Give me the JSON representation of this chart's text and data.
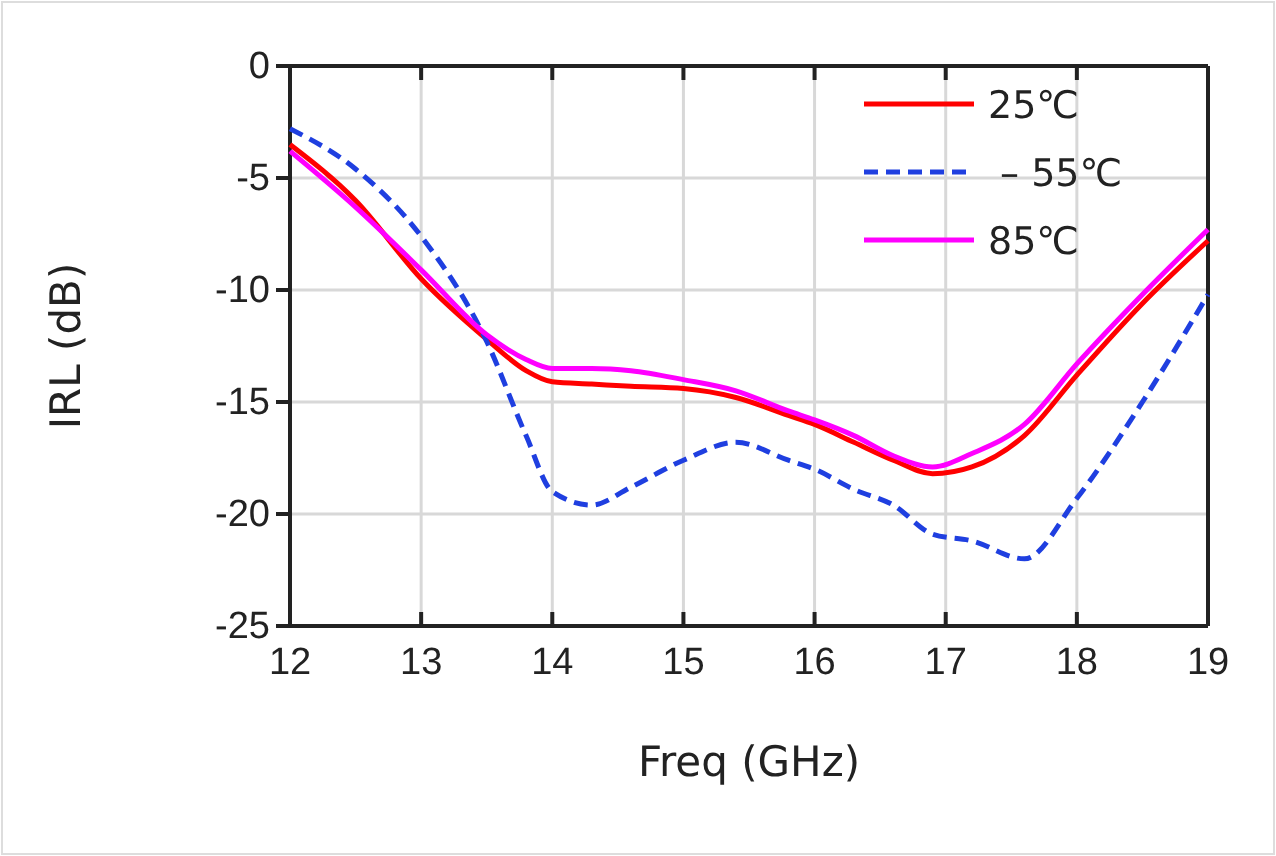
{
  "chart_data": {
    "type": "line",
    "xlabel": "Freq (GHz)",
    "ylabel": "IRL (dB)",
    "xlim": [
      12,
      19
    ],
    "xticks": [
      12,
      13,
      14,
      15,
      16,
      17,
      18,
      19
    ],
    "ylim": [
      -25,
      0
    ],
    "yticks": [
      -25,
      -20,
      -15,
      -10,
      -5,
      0
    ],
    "grid": true,
    "legend": "top right",
    "x": [
      12,
      12.5,
      13,
      13.5,
      13.8,
      14,
      14.3,
      14.6,
      15,
      15.4,
      15.8,
      16,
      16.3,
      16.6,
      16.9,
      17.2,
      17.6,
      18,
      18.5,
      19
    ],
    "series": [
      {
        "name": "25℃",
        "color": "#ff0000",
        "line_style": "solid",
        "values": [
          -3.5,
          -6,
          -9.5,
          -12.2,
          -13.6,
          -14.1,
          -14.2,
          -14.3,
          -14.4,
          -14.8,
          -15.6,
          -16,
          -16.8,
          -17.6,
          -18.2,
          -17.9,
          -16.5,
          -13.8,
          -10.6,
          -7.8
        ]
      },
      {
        "name": " – 55℃",
        "color": "#1f3fe0",
        "line_style": "dashed",
        "values": [
          -2.8,
          -4.6,
          -7.6,
          -12.3,
          -16.5,
          -19,
          -19.6,
          -18.8,
          -17.6,
          -16.8,
          -17.6,
          -18,
          -18.9,
          -19.6,
          -20.9,
          -21.2,
          -22,
          -19.3,
          -15,
          -10.2
        ]
      },
      {
        "name": "85℃",
        "color": "#ff00ff",
        "line_style": "solid",
        "values": [
          -3.8,
          -6.3,
          -9.1,
          -12,
          -13.1,
          -13.5,
          -13.5,
          -13.6,
          -14,
          -14.5,
          -15.4,
          -15.8,
          -16.5,
          -17.4,
          -17.9,
          -17.3,
          -16,
          -13.3,
          -10.2,
          -7.3
        ]
      }
    ]
  }
}
